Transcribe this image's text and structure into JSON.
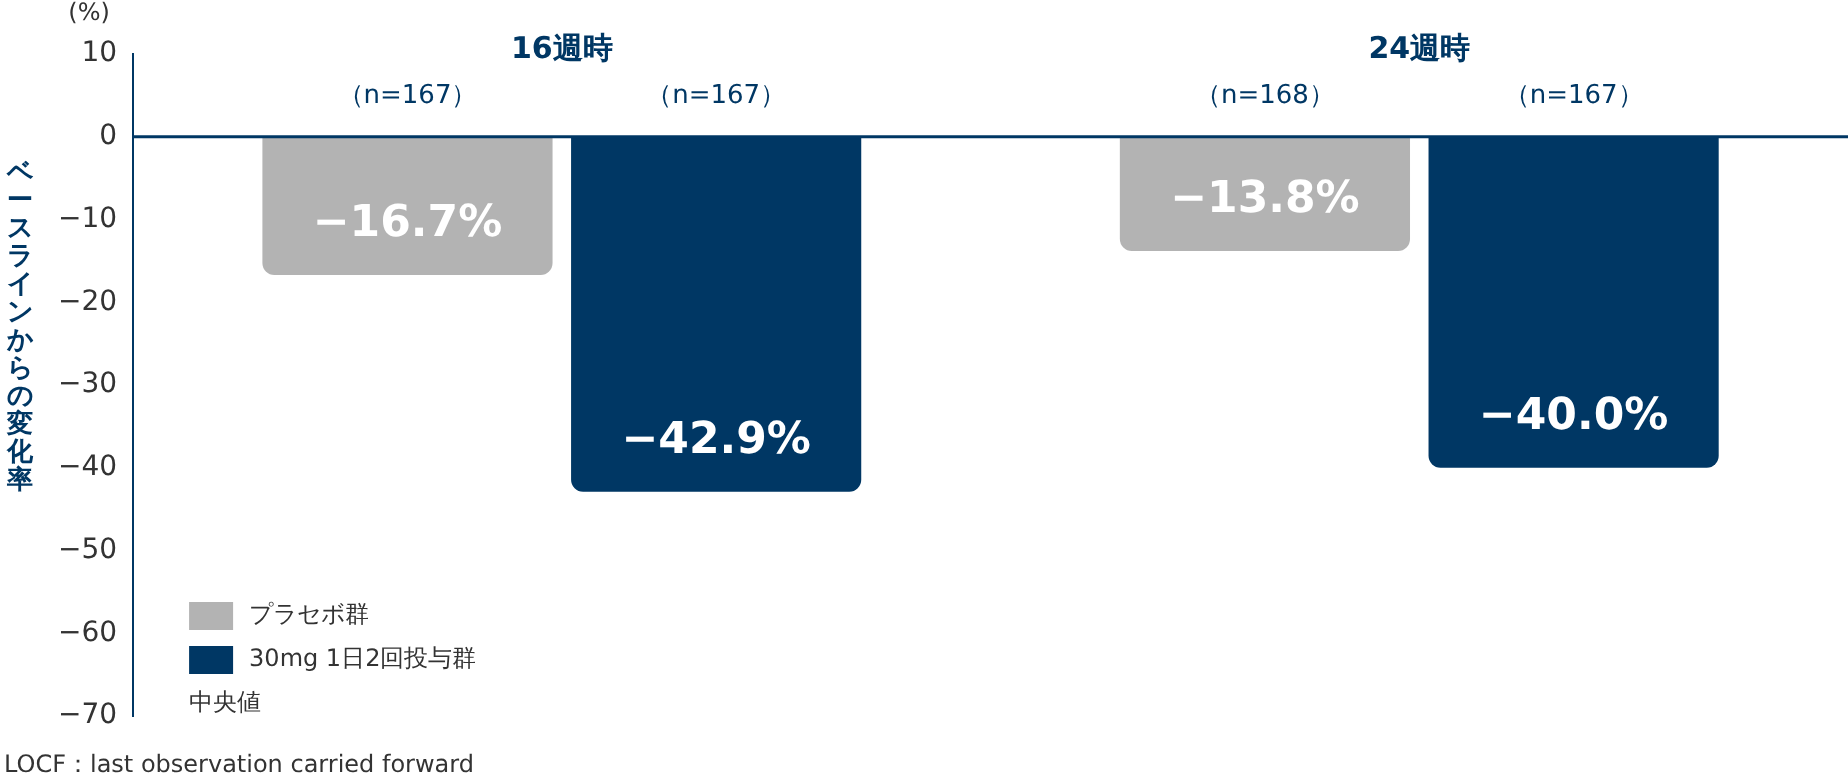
{
  "chart_data": {
    "type": "bar",
    "ylabel": "ベースラインからの変化率",
    "categories": [
      "16週時",
      "24週時"
    ],
    "series": [
      {
        "name": "プラセボ群",
        "color": "#b3b3b3",
        "values": [
          -16.7,
          -13.8
        ],
        "value_labels": [
          "−16.7%",
          "−13.8%"
        ]
      },
      {
        "name": "30mg 1日2回投与群",
        "color": "#003764",
        "values": [
          -42.9,
          -40.0
        ],
        "value_labels": [
          "−42.9%",
          "−40.0%"
        ]
      }
    ],
    "ylim": [
      -70,
      10
    ],
    "yticks": [
      {
        "value": 10,
        "label": "10"
      },
      {
        "value": 0,
        "label": "0"
      },
      {
        "value": -10,
        "label": "−10"
      },
      {
        "value": -20,
        "label": "−20"
      },
      {
        "value": -30,
        "label": "−30"
      },
      {
        "value": -40,
        "label": "−40"
      },
      {
        "value": -50,
        "label": "−50"
      },
      {
        "value": -60,
        "label": "−60"
      },
      {
        "value": -70,
        "label": "−70"
      }
    ],
    "grid": false,
    "legend": "bottom left",
    "annotations": [
      "（n=167）",
      "（n=167）",
      "（n=168）",
      "（n=167）",
      "(%)",
      "中央値",
      "LOCF：last observation carried forward"
    ]
  }
}
